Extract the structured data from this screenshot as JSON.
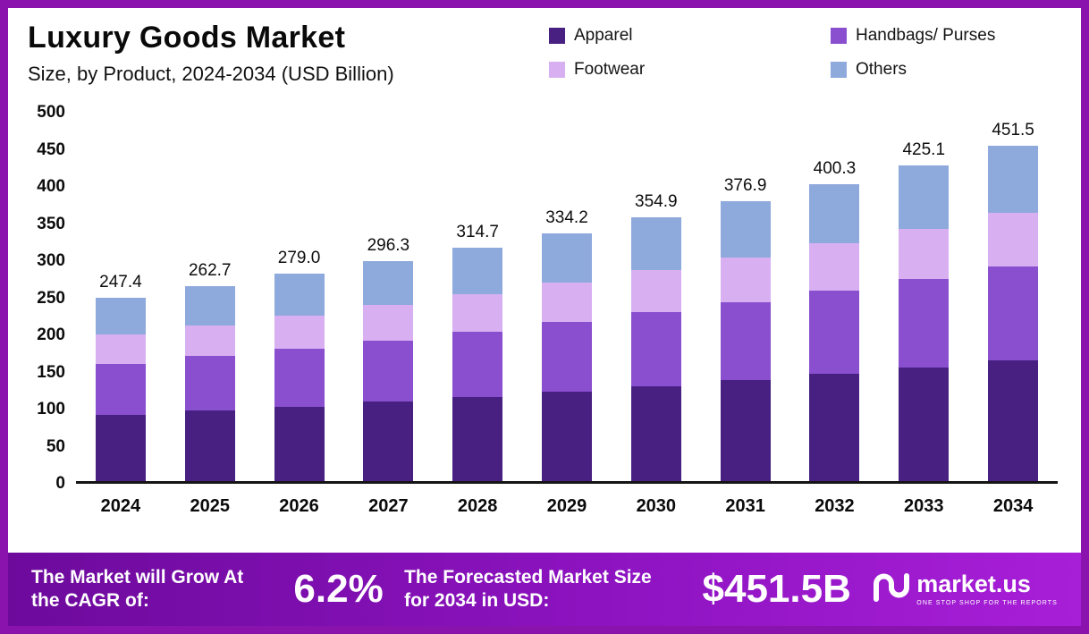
{
  "header": {
    "title": "Luxury Goods Market",
    "subtitle": "Size, by Product, 2024-2034 (USD Billion)"
  },
  "chart_data": {
    "type": "bar",
    "stacked": true,
    "title": "Luxury Goods Market Size, by Product, 2024-2034 (USD Billion)",
    "categories": [
      "2024",
      "2025",
      "2026",
      "2027",
      "2028",
      "2029",
      "2030",
      "2031",
      "2032",
      "2033",
      "2034"
    ],
    "series": [
      {
        "name": "Apparel",
        "color": "#472082",
        "values": [
          89.1,
          94.6,
          100.4,
          106.7,
          113.3,
          120.3,
          127.8,
          135.7,
          144.1,
          153.0,
          162.5
        ]
      },
      {
        "name": "Handbags/ Purses",
        "color": "#8a4fcf",
        "values": [
          69.3,
          73.6,
          78.1,
          83.0,
          88.1,
          93.6,
          99.4,
          105.5,
          112.1,
          119.0,
          126.4
        ]
      },
      {
        "name": "Footwear",
        "color": "#d8b0f2",
        "values": [
          39.6,
          42.0,
          44.6,
          47.4,
          50.4,
          53.5,
          56.8,
          60.3,
          64.0,
          68.0,
          72.2
        ]
      },
      {
        "name": "Others",
        "color": "#8ea9dc",
        "values": [
          49.4,
          52.5,
          55.9,
          59.2,
          62.9,
          66.8,
          70.9,
          75.4,
          80.1,
          85.1,
          90.4
        ]
      }
    ],
    "totals": [
      247.4,
      262.7,
      279.0,
      296.3,
      314.7,
      334.2,
      354.9,
      376.9,
      400.3,
      425.1,
      451.5
    ],
    "xlabel": "",
    "ylabel": "",
    "ylim": [
      0,
      500
    ],
    "yticks": [
      0,
      50,
      100,
      150,
      200,
      250,
      300,
      350,
      400,
      450,
      500
    ],
    "grid": false,
    "legend_position": "top-right"
  },
  "footer": {
    "cagr_label": "The Market will Grow At the CAGR of:",
    "cagr_value": "6.2%",
    "forecast_label": "The Forecasted Market Size for 2034 in USD:",
    "forecast_value": "$451.5B",
    "brand": "market.us",
    "brand_tagline": "ONE STOP SHOP FOR THE REPORTS"
  },
  "colors": {
    "frame": "#8a12ad",
    "footer_gradient_start": "#6d0a9c",
    "footer_gradient_end": "#a81fd8",
    "axis_line": "#141414"
  }
}
